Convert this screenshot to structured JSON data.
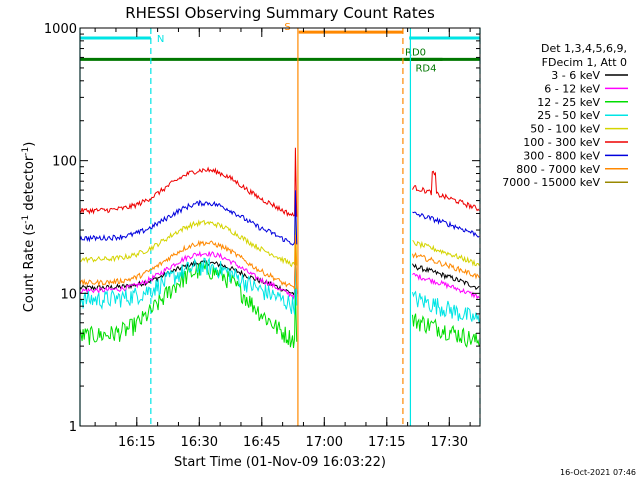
{
  "chart_data": {
    "type": "line",
    "title": "RHESSI Observing Summary Count Rates",
    "xlabel": "Start Time (01-Nov-09 16:03:22)",
    "ylabel_main": "Count Rate (s",
    "ylabel_sup": "-1",
    "ylabel_rest": " detector",
    "ylabel_sup2": "-1",
    "ylabel_end": ")",
    "yscale": "log",
    "ylim": [
      1,
      1000
    ],
    "xlim_minutes": [
      0,
      96
    ],
    "yticks": [
      {
        "value": 1,
        "label": "1"
      },
      {
        "value": 10,
        "label": "10"
      },
      {
        "value": 100,
        "label": "100"
      },
      {
        "value": 1000,
        "label": "1000"
      }
    ],
    "xticks": [
      {
        "minute": 13.63,
        "label": "16:15"
      },
      {
        "minute": 28.63,
        "label": "16:30"
      },
      {
        "minute": 43.63,
        "label": "16:45"
      },
      {
        "minute": 58.63,
        "label": "17:00"
      },
      {
        "minute": 73.63,
        "label": "17:15"
      },
      {
        "minute": 88.63,
        "label": "17:30"
      }
    ],
    "legend_header": [
      "Det 1,3,4,5,6,9,",
      "FDecim 1, Att 0"
    ],
    "series": [
      {
        "name": "3 - 6 keV",
        "color": "#000000",
        "pre": [
          11,
          17
        ],
        "post": 14
      },
      {
        "name": "6 - 12 keV",
        "color": "#ff00ff",
        "pre": [
          10.5,
          20
        ],
        "post": 12
      },
      {
        "name": "12 - 25 keV",
        "color": "#00dd00",
        "pre": [
          4.8,
          15
        ],
        "post": 5.5
      },
      {
        "name": "25 - 50 keV",
        "color": "#00e5e5",
        "pre": [
          9,
          16
        ],
        "post": 8
      },
      {
        "name": "50 - 100 keV",
        "color": "#d4d400",
        "pre": [
          18,
          34
        ],
        "post": 21
      },
      {
        "name": "100 - 300 keV",
        "color": "#ee0000",
        "pre": [
          42,
          85
        ],
        "post": 55
      },
      {
        "name": "300 - 800 keV",
        "color": "#0000dd",
        "pre": [
          26,
          48
        ],
        "post": 35
      },
      {
        "name": "800 - 7000 keV",
        "color": "#ff8800",
        "pre": [
          12,
          24
        ],
        "post": 17
      },
      {
        "name": "7000 - 15000 keV",
        "color": "#998800",
        "pre": [
          null,
          null
        ],
        "post": null
      }
    ],
    "flags": [
      {
        "label": "N",
        "color": "#00e5e5",
        "start_min": 0,
        "end_min": 17,
        "level": 840
      },
      {
        "label": "N",
        "color": "#00e5e5",
        "start_min": 79,
        "end_min": 96,
        "level": 840,
        "show_label": false
      },
      {
        "label": "S",
        "color": "#ff8800",
        "start_min": 52.5,
        "end_min": 77.5,
        "level": 930
      },
      {
        "label": "RD0",
        "color": "#007700",
        "start_min": 78,
        "end_min": 96,
        "level": 580
      },
      {
        "label": "RD4",
        "color": "#007700",
        "start_min": 0,
        "end_min": 87,
        "level": 580
      }
    ],
    "vlines": [
      {
        "minute": 0.0,
        "color": "#00e5e5",
        "style": "solid"
      },
      {
        "minute": 17.0,
        "color": "#00e5e5",
        "style": "dashed"
      },
      {
        "minute": 52.3,
        "color": "#ff8800",
        "style": "solid"
      },
      {
        "minute": 77.5,
        "color": "#ff8800",
        "style": "dashed"
      },
      {
        "minute": 79.3,
        "color": "#00e5e5",
        "style": "solid"
      },
      {
        "minute": 96.0,
        "color": "#00e5e5",
        "style": "dashed"
      }
    ],
    "timestamp": "16-Oct-2021 07:46"
  }
}
